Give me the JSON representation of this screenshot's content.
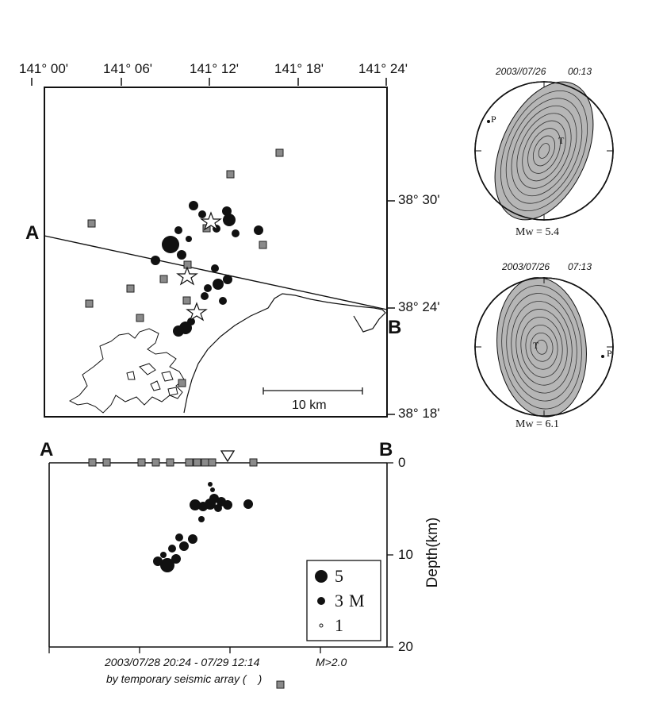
{
  "map": {
    "lon_labels": [
      "141° 00'",
      "141° 06'",
      "141° 12'",
      "141° 18'",
      "141° 24'"
    ],
    "lat_labels": [
      "38° 30'",
      "38° 24'",
      "38° 18'"
    ],
    "point_a": "A",
    "point_b": "B",
    "scale_label": "10 km"
  },
  "cross_section": {
    "point_a": "A",
    "point_b": "B",
    "depth_label": "Depth(km)",
    "depth_ticks": [
      "0",
      "10",
      "20"
    ]
  },
  "legend": {
    "items": [
      {
        "value": "5",
        "unit": ""
      },
      {
        "value": "3",
        "unit": "M"
      },
      {
        "value": "1",
        "unit": ""
      }
    ]
  },
  "caption": {
    "line1": "2003/07/28 20:24 - 07/29 12:14",
    "magnitude": "M>2.0",
    "line2": "by temporary seismic array ("
  },
  "mechanisms": [
    {
      "date": "2003//07/26",
      "time": "00:13",
      "p_label": "P",
      "t_label": "T",
      "mw": "Mw = 5.4"
    },
    {
      "date": "2003/07/26",
      "time": "07:13",
      "p_label": "P",
      "t_label": "T",
      "mw": "Mw = 6.1"
    }
  ],
  "colors": {
    "ink": "#111111",
    "station": "#8a8a8a",
    "compressional": "#6e6e6e"
  }
}
